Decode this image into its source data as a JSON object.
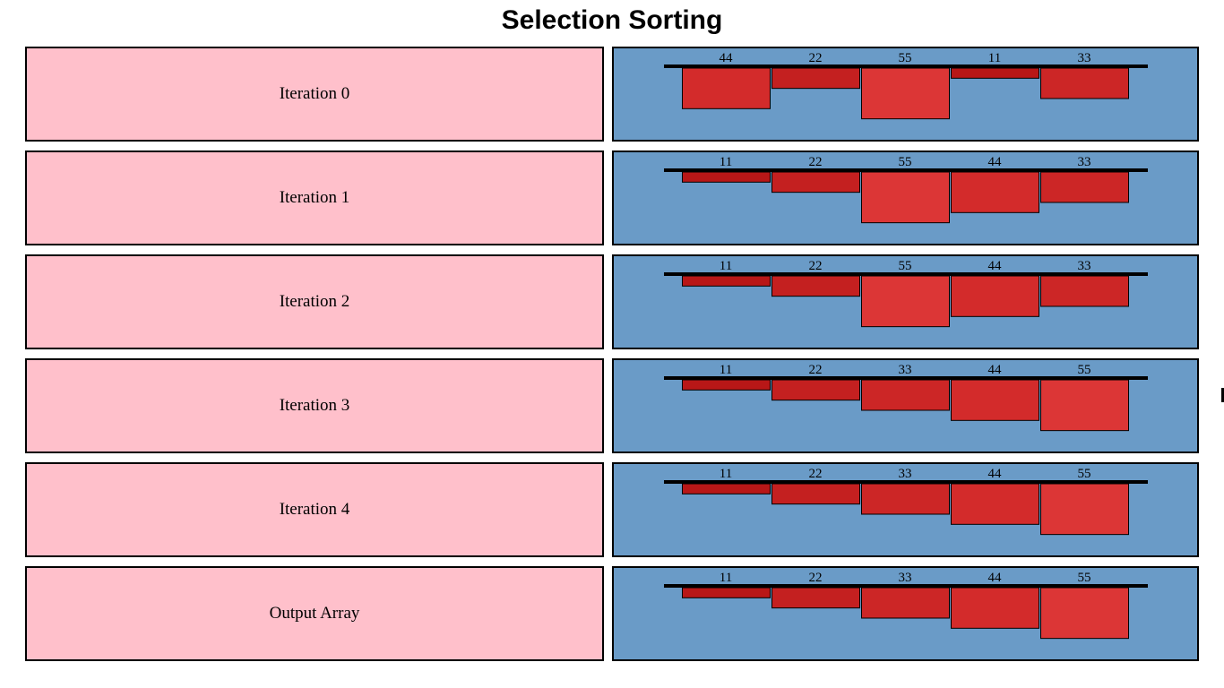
{
  "title": "Selection Sorting",
  "colors": {
    "label_bg": "#ffc0cb",
    "chart_bg": "#6a9bc7",
    "bar_shades": [
      "#b81717",
      "#c42020",
      "#cc2626",
      "#d32b2b",
      "#dc3636"
    ]
  },
  "iterations": [
    {
      "label": "Iteration 0",
      "values": [
        44,
        22,
        55,
        11,
        33
      ]
    },
    {
      "label": "Iteration 1",
      "values": [
        11,
        22,
        55,
        44,
        33
      ]
    },
    {
      "label": "Iteration 2",
      "values": [
        11,
        22,
        55,
        44,
        33
      ]
    },
    {
      "label": "Iteration 3",
      "values": [
        11,
        22,
        33,
        44,
        55
      ]
    },
    {
      "label": "Iteration 4",
      "values": [
        11,
        22,
        33,
        44,
        55
      ]
    },
    {
      "label": "Output Array",
      "values": [
        11,
        22,
        33,
        44,
        55
      ]
    }
  ]
}
